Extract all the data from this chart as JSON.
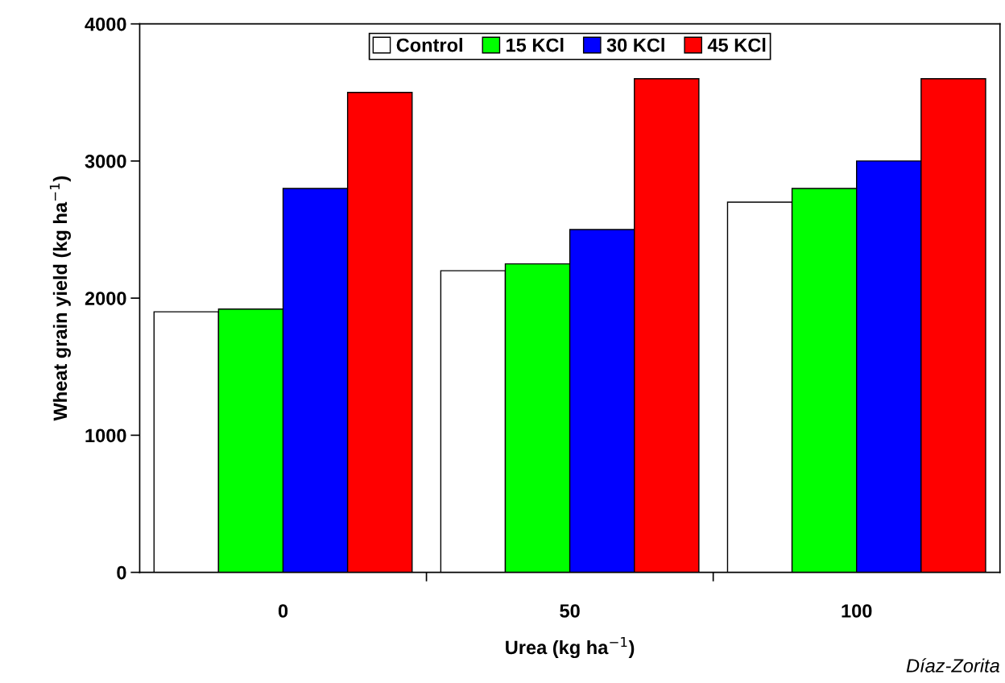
{
  "chart_data": {
    "type": "bar",
    "xlabel": "Urea (kg ha$^{−1}$)",
    "ylabel": "Wheat grain yield (kg ha$^{−1}$)",
    "categories": [
      "0",
      "50",
      "100"
    ],
    "series": [
      {
        "name": "Control",
        "color": "#ffffff",
        "values": [
          1900,
          2200,
          2700
        ]
      },
      {
        "name": "15 KCl",
        "color": "#00ff00",
        "values": [
          1920,
          2250,
          2800
        ]
      },
      {
        "name": "30 KCl",
        "color": "#0000ff",
        "values": [
          2800,
          2500,
          3000
        ]
      },
      {
        "name": "45 KCl",
        "color": "#ff0000",
        "values": [
          3500,
          3600,
          3600
        ]
      }
    ],
    "ylim": [
      0,
      4000
    ],
    "yticks": [
      0,
      1000,
      2000,
      3000,
      4000
    ],
    "grid": false,
    "legend": "top",
    "annotations": [
      "Díaz-Zorita"
    ]
  }
}
